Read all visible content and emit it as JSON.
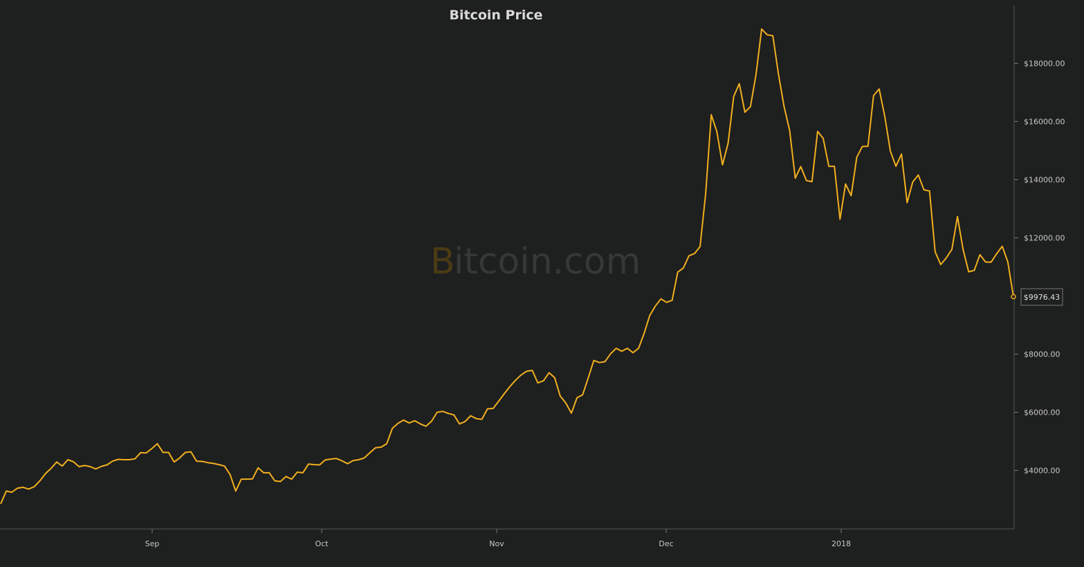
{
  "chart_data": {
    "type": "line",
    "title": "Bitcoin Price",
    "watermark": {
      "prefix": "B",
      "text": "itcoin.com"
    },
    "xlabel": "",
    "ylabel": "",
    "x_ticks": [
      "Sep",
      "Oct",
      "Nov",
      "Dec",
      "2018"
    ],
    "y_ticks": [
      "$4000.00",
      "$6000.00",
      "$8000.00",
      "$12000.00",
      "$14000.00",
      "$16000.00",
      "$18000.00"
    ],
    "y_tick_values": [
      4000,
      6000,
      8000,
      12000,
      14000,
      16000,
      18000
    ],
    "ylim": [
      2000,
      20000
    ],
    "current_label": "$9976.43",
    "grid": false,
    "line_color": "#f2b01e",
    "series": [
      {
        "values": [
          2850,
          3290,
          3250,
          3390,
          3420,
          3360,
          3440,
          3640,
          3890,
          4070,
          4290,
          4150,
          4370,
          4300,
          4130,
          4170,
          4130,
          4050,
          4140,
          4190,
          4320,
          4380,
          4370,
          4370,
          4400,
          4610,
          4600,
          4750,
          4920,
          4620,
          4620,
          4290,
          4430,
          4620,
          4640,
          4320,
          4310,
          4270,
          4240,
          4200,
          4150,
          3860,
          3290,
          3700,
          3700,
          3710,
          4090,
          3920,
          3920,
          3640,
          3620,
          3790,
          3700,
          3940,
          3920,
          4220,
          4200,
          4190,
          4360,
          4390,
          4410,
          4330,
          4230,
          4340,
          4370,
          4430,
          4610,
          4780,
          4800,
          4920,
          5450,
          5620,
          5730,
          5630,
          5710,
          5600,
          5520,
          5690,
          6000,
          6030,
          5960,
          5910,
          5600,
          5680,
          5880,
          5780,
          5760,
          6120,
          6130,
          6380,
          6640,
          6880,
          7100,
          7280,
          7410,
          7440,
          7010,
          7080,
          7360,
          7190,
          6560,
          6320,
          5970,
          6500,
          6600,
          7180,
          7780,
          7710,
          7740,
          8010,
          8200,
          8100,
          8200,
          8050,
          8200,
          8720,
          9330,
          9650,
          9900,
          9780,
          9850,
          10820,
          10960,
          11380,
          11460,
          11700,
          13520,
          16230,
          15650,
          14510,
          15250,
          16860,
          17300,
          16320,
          16510,
          17620,
          19180,
          18980,
          18950,
          17630,
          16520,
          15690,
          14050,
          14450,
          13970,
          13930,
          15660,
          15420,
          14460,
          14460,
          12640,
          13850,
          13450,
          14770,
          15140,
          15150,
          16890,
          17120,
          16180,
          14980,
          14460,
          14880,
          13210,
          13920,
          14160,
          13650,
          13610,
          11520,
          11080,
          11310,
          11600,
          12730,
          11600,
          10830,
          10880,
          11420,
          11170,
          11160,
          11450,
          11710,
          11170,
          9976.43
        ]
      }
    ]
  }
}
